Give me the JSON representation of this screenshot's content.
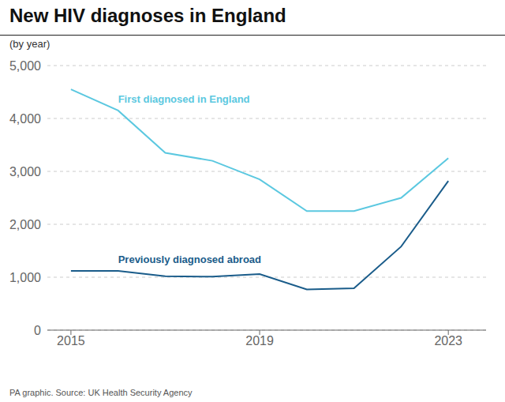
{
  "chart_data": {
    "type": "line",
    "title": "New HIV diagnoses in England",
    "subtitle": "(by year)",
    "source": "PA graphic. Source: UK Health Security Agency",
    "x": [
      2015,
      2016,
      2017,
      2018,
      2019,
      2020,
      2021,
      2022,
      2023
    ],
    "series": [
      {
        "name": "First diagnosed in England",
        "color": "#5bc8e0",
        "values": [
          4550,
          4150,
          3350,
          3200,
          2850,
          2250,
          2250,
          2500,
          3250
        ]
      },
      {
        "name": "Previously diagnosed abroad",
        "color": "#1a5c8a",
        "values": [
          1120,
          1120,
          1020,
          1010,
          1060,
          770,
          790,
          1580,
          2820
        ]
      }
    ],
    "xlim": [
      2014.5,
      2023.8
    ],
    "xticks": [
      2015,
      2019,
      2023
    ],
    "ylim": [
      0,
      5000
    ],
    "yticks": [
      0,
      {
        "value": 1000,
        "label": "1,000"
      },
      {
        "value": 2000,
        "label": "2,000"
      },
      {
        "value": 3000,
        "label": "3,000"
      },
      {
        "value": 4000,
        "label": "4,000"
      },
      {
        "value": 5000,
        "label": "5,000"
      }
    ],
    "grid": true
  }
}
